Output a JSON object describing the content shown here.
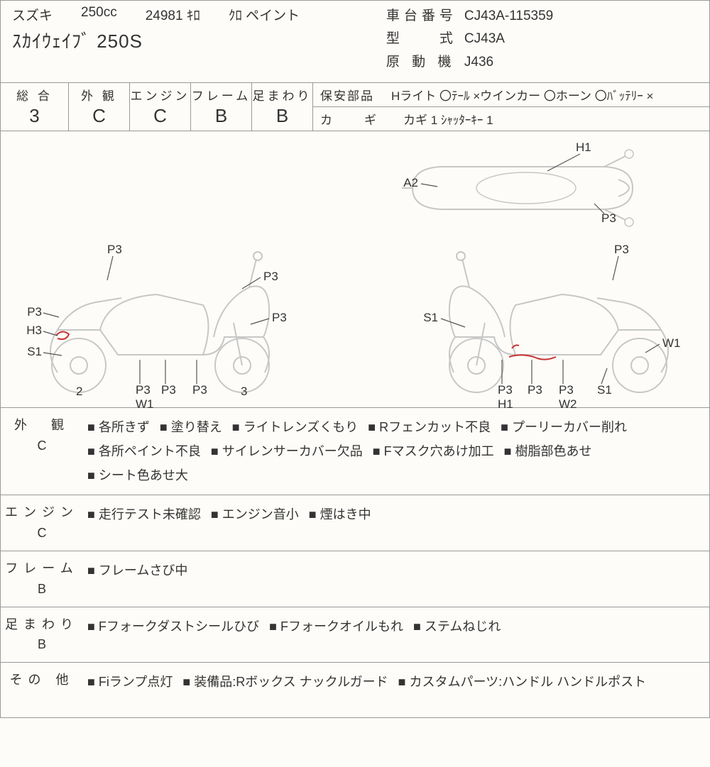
{
  "header": {
    "maker": "スズキ",
    "cc": "250cc",
    "mileage": "24981 ｷﾛ",
    "color": "ｸﾛ ペイント",
    "model": "ｽｶｲｳｪｲﾌﾞ 250S",
    "chassis_label": "車台番号",
    "chassis": "CJ43A-115359",
    "type_label": "型　　式",
    "type": "CJ43A",
    "engine_label": "原 動 機",
    "engine": "J436"
  },
  "grades": {
    "sogo": {
      "label": "総 合",
      "value": "3"
    },
    "gaikan": {
      "label": "外 観",
      "value": "C"
    },
    "engine": {
      "label": "エンジン",
      "value": "C"
    },
    "frame": {
      "label": "フレーム",
      "value": "B"
    },
    "ashi": {
      "label": "足まわり",
      "value": "B"
    }
  },
  "safety": {
    "row1_label": "保安部品",
    "row1": [
      {
        "name": "Hライト",
        "mark": "〇"
      },
      {
        "name": "ﾃｰﾙ",
        "mark": "×"
      },
      {
        "name": "ウインカー",
        "mark": "〇"
      },
      {
        "name": "ホーン",
        "mark": "〇"
      },
      {
        "name": "ﾊﾞｯﾃﾘｰ",
        "mark": "×"
      }
    ],
    "row2_label": "カ　ギ",
    "row2_text": "カギ 1  ｼｬｯﾀｰｷｰ 1"
  },
  "diagram": {
    "top": {
      "labels": [
        "A2",
        "H1",
        "P3"
      ]
    },
    "left": {
      "labels_top": [
        "P3",
        "P3",
        "P3",
        "H3",
        "S1",
        "P3"
      ],
      "labels_bot": [
        "2",
        "P3",
        "P3",
        "P3",
        "3"
      ],
      "extra": "W1"
    },
    "right": {
      "labels_top": [
        "P3",
        "S1"
      ],
      "labels_bot": [
        "P3",
        "P3",
        "P3",
        "S1",
        "W1"
      ],
      "extra": [
        "H1",
        "W2"
      ]
    },
    "stroke": "#c7c7c7",
    "text_color": "#333333",
    "mark_color": "#c83232"
  },
  "notes": [
    {
      "label_top": "外　観",
      "label_bot": "C",
      "items": [
        "各所きず",
        "塗り替え",
        "ライトレンズくもり",
        "Rフェンカット不良",
        "プーリーカバー削れ",
        "各所ペイント不良",
        "サイレンサーカバー欠品",
        "Fマスク穴あけ加工",
        "樹脂部色あせ",
        "シート色あせ大"
      ]
    },
    {
      "label_top": "エンジン",
      "label_bot": "C",
      "items": [
        "走行テスト未確認",
        "エンジン音小",
        "煙はき中"
      ]
    },
    {
      "label_top": "フレーム",
      "label_bot": "B",
      "items": [
        "フレームさび中"
      ]
    },
    {
      "label_top": "足まわり",
      "label_bot": "B",
      "items": [
        "Fフォークダストシールひび",
        "Fフォークオイルもれ",
        "ステムねじれ"
      ]
    },
    {
      "label_top": "その 他",
      "label_bot": "",
      "items": [
        "Fiランプ点灯",
        "装備品:Rボックス ナックルガード",
        "カスタムパーツ:ハンドル ハンドルポスト"
      ]
    }
  ]
}
